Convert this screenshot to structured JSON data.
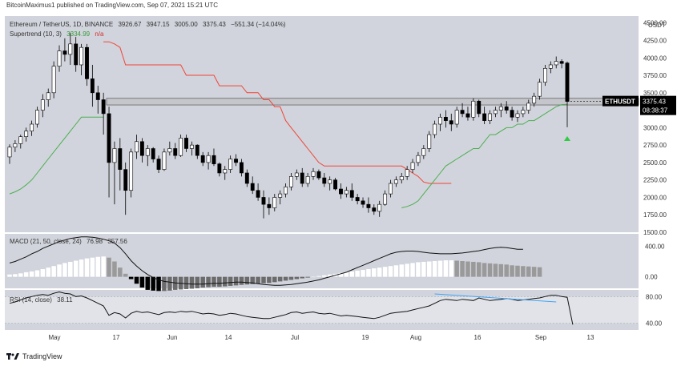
{
  "publish_line": "BitcoinMaximus1 published on TradingView.com, Sep 07, 2021 15:21 UTC",
  "legend": {
    "symbol": "Ethereum / TetherUS, 1D, BINANCE",
    "open": "3926.67",
    "high": "3947.15",
    "low": "3005.00",
    "close": "3375.43",
    "change": "−551.34 (−14.04%)",
    "supertrend_label": "Supertrend (10, 3)",
    "supertrend_value": "3334.99",
    "supertrend_na": "n/a",
    "macd_label": "MACD (21, 50, close, 24)",
    "macd_value1": "76.98",
    "macd_value2": "357.56",
    "rsi_label": "RSI (14, close)",
    "rsi_value": "38.11"
  },
  "price_axis": {
    "unit": "USDT",
    "ticks": [
      "4500.00",
      "4250.00",
      "4000.00",
      "3750.00",
      "3500.00",
      "3250.00",
      "3000.00",
      "2750.00",
      "2500.00",
      "2250.00",
      "2000.00",
      "1750.00",
      "1500.00"
    ]
  },
  "last_price_tag": {
    "symbol": "ETHUSDT",
    "price": "3375.43",
    "countdown": "08:38:37"
  },
  "macd_axis": {
    "ticks": [
      "400.00",
      "0.00"
    ]
  },
  "rsi_axis": {
    "ticks": [
      "80.00",
      "40.00"
    ]
  },
  "date_axis": {
    "ticks": [
      "May",
      "17",
      "Jun",
      "14",
      "Jul",
      "19",
      "Aug",
      "16",
      "Sep",
      "13"
    ]
  },
  "footer": {
    "brand": "TradingView"
  },
  "colors": {
    "background": "#d1d4dc",
    "up": "#ffffff",
    "down": "#000000",
    "supertrend_up": "#4caf50",
    "supertrend_down": "#f44336",
    "rsi_band": "#e1e3e8",
    "rsi_trendline": "#42a5f5"
  },
  "chart_data": [
    {
      "type": "candlestick",
      "title": "Ethereum / TetherUS, 1D, BINANCE",
      "ylabel": "USDT",
      "ylim": [
        1500,
        4600
      ],
      "x_ticks": [
        "May",
        "17",
        "Jun",
        "14",
        "Jul",
        "19",
        "Aug",
        "16",
        "Sep",
        "13"
      ],
      "resistance_zone": [
        3325,
        3420
      ],
      "candles": [
        [
          2580,
          2760,
          2480,
          2720
        ],
        [
          2720,
          2820,
          2650,
          2770
        ],
        [
          2770,
          2900,
          2700,
          2870
        ],
        [
          2870,
          3000,
          2800,
          2950
        ],
        [
          2950,
          3100,
          2880,
          3050
        ],
        [
          3050,
          3300,
          3000,
          3250
        ],
        [
          3250,
          3480,
          3150,
          3400
        ],
        [
          3400,
          3560,
          3300,
          3500
        ],
        [
          3500,
          3950,
          3420,
          3880
        ],
        [
          3880,
          4180,
          3800,
          4100
        ],
        [
          4100,
          4280,
          3950,
          4050
        ],
        [
          4050,
          4360,
          3900,
          4200
        ],
        [
          4200,
          4300,
          3800,
          3900
        ],
        [
          3900,
          4200,
          3750,
          4150
        ],
        [
          4150,
          4200,
          3600,
          3700
        ],
        [
          3700,
          3900,
          3300,
          3500
        ],
        [
          3500,
          3600,
          3200,
          3400
        ],
        [
          3400,
          3500,
          2900,
          3200
        ],
        [
          3200,
          3300,
          2000,
          2500
        ],
        [
          2500,
          2800,
          1900,
          2700
        ],
        [
          2700,
          2850,
          2100,
          2400
        ],
        [
          2400,
          2500,
          1750,
          2100
        ],
        [
          2100,
          2700,
          2000,
          2650
        ],
        [
          2650,
          2900,
          2550,
          2800
        ],
        [
          2800,
          2850,
          2500,
          2600
        ],
        [
          2600,
          2750,
          2450,
          2700
        ],
        [
          2700,
          2720,
          2500,
          2550
        ],
        [
          2550,
          2600,
          2350,
          2400
        ],
        [
          2400,
          2700,
          2380,
          2650
        ],
        [
          2650,
          2800,
          2600,
          2700
        ],
        [
          2700,
          2780,
          2550,
          2600
        ],
        [
          2600,
          2900,
          2580,
          2850
        ],
        [
          2850,
          2900,
          2650,
          2700
        ],
        [
          2700,
          2800,
          2600,
          2750
        ],
        [
          2750,
          2760,
          2550,
          2600
        ],
        [
          2600,
          2650,
          2450,
          2500
        ],
        [
          2500,
          2650,
          2400,
          2600
        ],
        [
          2600,
          2700,
          2450,
          2480
        ],
        [
          2480,
          2500,
          2300,
          2350
        ],
        [
          2350,
          2450,
          2250,
          2400
        ],
        [
          2400,
          2600,
          2350,
          2550
        ],
        [
          2550,
          2620,
          2450,
          2500
        ],
        [
          2500,
          2550,
          2300,
          2350
        ],
        [
          2350,
          2400,
          2150,
          2200
        ],
        [
          2200,
          2300,
          2050,
          2100
        ],
        [
          2100,
          2200,
          1950,
          2000
        ],
        [
          2000,
          2100,
          1700,
          1900
        ],
        [
          1900,
          2000,
          1750,
          1850
        ],
        [
          1850,
          2050,
          1800,
          2000
        ],
        [
          2000,
          2100,
          1900,
          2050
        ],
        [
          2050,
          2200,
          2000,
          2150
        ],
        [
          2150,
          2350,
          2100,
          2300
        ],
        [
          2300,
          2400,
          2250,
          2350
        ],
        [
          2350,
          2420,
          2150,
          2200
        ],
        [
          2200,
          2350,
          2150,
          2300
        ],
        [
          2300,
          2420,
          2250,
          2370
        ],
        [
          2370,
          2400,
          2250,
          2280
        ],
        [
          2280,
          2350,
          2150,
          2200
        ],
        [
          2200,
          2300,
          2100,
          2250
        ],
        [
          2250,
          2280,
          2100,
          2120
        ],
        [
          2120,
          2200,
          1980,
          2050
        ],
        [
          2050,
          2150,
          2000,
          2100
        ],
        [
          2100,
          2200,
          1950,
          2000
        ],
        [
          2000,
          2050,
          1900,
          1950
        ],
        [
          1950,
          2000,
          1850,
          1900
        ],
        [
          1900,
          2000,
          1780,
          1850
        ],
        [
          1850,
          1900,
          1750,
          1800
        ],
        [
          1800,
          1950,
          1720,
          1900
        ],
        [
          1900,
          2100,
          1880,
          2050
        ],
        [
          2050,
          2250,
          2000,
          2200
        ],
        [
          2200,
          2300,
          2150,
          2250
        ],
        [
          2250,
          2350,
          2200,
          2300
        ],
        [
          2300,
          2450,
          2250,
          2400
        ],
        [
          2400,
          2550,
          2350,
          2500
        ],
        [
          2500,
          2650,
          2450,
          2600
        ],
        [
          2600,
          2750,
          2550,
          2700
        ],
        [
          2700,
          2950,
          2650,
          2900
        ],
        [
          2900,
          3100,
          2850,
          3050
        ],
        [
          3050,
          3200,
          2950,
          3150
        ],
        [
          3150,
          3250,
          3000,
          3100
        ],
        [
          3100,
          3200,
          2950,
          3050
        ],
        [
          3050,
          3300,
          3000,
          3250
        ],
        [
          3250,
          3350,
          3150,
          3200
        ],
        [
          3200,
          3300,
          3100,
          3150
        ],
        [
          3150,
          3420,
          3100,
          3380
        ],
        [
          3380,
          3400,
          3150,
          3200
        ],
        [
          3200,
          3300,
          3050,
          3100
        ],
        [
          3100,
          3250,
          3050,
          3200
        ],
        [
          3200,
          3300,
          3150,
          3250
        ],
        [
          3250,
          3350,
          3150,
          3300
        ],
        [
          3300,
          3380,
          3200,
          3250
        ],
        [
          3250,
          3300,
          3100,
          3150
        ],
        [
          3150,
          3250,
          3080,
          3200
        ],
        [
          3200,
          3300,
          3150,
          3250
        ],
        [
          3250,
          3400,
          3200,
          3350
        ],
        [
          3350,
          3500,
          3300,
          3450
        ],
        [
          3450,
          3700,
          3400,
          3650
        ],
        [
          3650,
          3900,
          3600,
          3850
        ],
        [
          3850,
          3950,
          3780,
          3900
        ],
        [
          3900,
          4020,
          3850,
          3950
        ],
        [
          3950,
          3980,
          3850,
          3920
        ],
        [
          3926.67,
          3947.15,
          3005,
          3375.43
        ]
      ],
      "supertrend_up_start": [
        2050,
        2080,
        2120,
        2180,
        2250,
        2350,
        2450,
        2550,
        2650,
        2750,
        2850,
        2950,
        3050,
        3150,
        3150,
        3150,
        3150,
        3150
      ],
      "supertrend_down_mid": [
        4230,
        4230,
        4200,
        4150,
        3900,
        3900,
        3900,
        3900,
        3900,
        3900,
        3900,
        3900,
        3900,
        3900,
        3900,
        3750,
        3750,
        3750,
        3750,
        3750,
        3750,
        3600,
        3600,
        3600,
        3600,
        3600,
        3500,
        3500,
        3500,
        3400,
        3400,
        3300,
        3300,
        3100,
        3000,
        2900,
        2800,
        2700,
        2600,
        2500,
        2450,
        2450,
        2450,
        2450,
        2450,
        2450,
        2450,
        2450,
        2450,
        2450,
        2450,
        2450,
        2450,
        2450,
        2450,
        2400,
        2350,
        2300,
        2220,
        2200,
        2200,
        2200,
        2200,
        2200
      ],
      "supertrend_up_end": [
        1850,
        1870,
        1900,
        1950,
        2050,
        2150,
        2250,
        2350,
        2450,
        2500,
        2550,
        2600,
        2650,
        2700,
        2700,
        2800,
        2900,
        2900,
        2950,
        3000,
        3000,
        3050,
        3050,
        3100,
        3100,
        3150,
        3200,
        3250,
        3300,
        3330,
        3335
      ]
    },
    {
      "type": "bar",
      "title": "MACD (21, 50, close, 24)",
      "ylim": [
        -150,
        560
      ],
      "histogram": [
        30,
        35,
        45,
        60,
        70,
        85,
        100,
        120,
        140,
        160,
        180,
        195,
        210,
        225,
        240,
        250,
        260,
        265,
        250,
        200,
        120,
        40,
        -30,
        -90,
        -140,
        -170,
        -180,
        -185,
        -185,
        -180,
        -170,
        -165,
        -160,
        -155,
        -150,
        -140,
        -135,
        -130,
        -130,
        -125,
        -118,
        -112,
        -105,
        -100,
        -95,
        -90,
        -85,
        -80,
        -70,
        -60,
        -50,
        -40,
        -30,
        -20,
        -10,
        0,
        10,
        20,
        30,
        40,
        50,
        60,
        70,
        80,
        90,
        100,
        110,
        120,
        130,
        140,
        150,
        160,
        170,
        180,
        190,
        195,
        200,
        205,
        210,
        215,
        215,
        210,
        205,
        200,
        195,
        190,
        180,
        175,
        170,
        165,
        160,
        150,
        145,
        140,
        135,
        130,
        125
      ],
      "macd_line": [
        180,
        200,
        230,
        260,
        300,
        330,
        370,
        400,
        430,
        460,
        480,
        500,
        510,
        520,
        520,
        515,
        505,
        490,
        470,
        440,
        380,
        300,
        210,
        140,
        80,
        30,
        -10,
        -40,
        -60,
        -70,
        -80,
        -85,
        -90,
        -95,
        -95,
        -95,
        -90,
        -85,
        -85,
        -80,
        -75,
        -70,
        -70,
        -75,
        -80,
        -90,
        -100,
        -105,
        -110,
        -110,
        -105,
        -100,
        -90,
        -80,
        -70,
        -55,
        -40,
        -20,
        0,
        20,
        40,
        60,
        90,
        120,
        150,
        180,
        210,
        240,
        270,
        300,
        320,
        330,
        335,
        335,
        330,
        320,
        310,
        305,
        300,
        300,
        300,
        305,
        310,
        320,
        330,
        340,
        355,
        370,
        380,
        385,
        380,
        370,
        360,
        358
      ]
    },
    {
      "type": "line",
      "title": "RSI (14, close)",
      "ylim": [
        30,
        90
      ],
      "band": [
        40,
        80
      ],
      "values": [
        70,
        72,
        75,
        78,
        80,
        82,
        83,
        82,
        85,
        87,
        85,
        84,
        80,
        81,
        78,
        74,
        70,
        66,
        52,
        56,
        54,
        48,
        55,
        58,
        56,
        57,
        55,
        53,
        56,
        57,
        56,
        58,
        57,
        58,
        56,
        54,
        55,
        54,
        52,
        53,
        55,
        54,
        52,
        50,
        49,
        48,
        47,
        47,
        49,
        51,
        53,
        56,
        57,
        55,
        56,
        57,
        55,
        54,
        55,
        53,
        51,
        52,
        51,
        50,
        49,
        48,
        47,
        49,
        52,
        55,
        56,
        57,
        58,
        60,
        62,
        64,
        66,
        70,
        74,
        76,
        75,
        74,
        76,
        75,
        74,
        78,
        76,
        74,
        75,
        76,
        77,
        76,
        74,
        75,
        76,
        77,
        78,
        80,
        82,
        82,
        80,
        79,
        38
      ]
    }
  ]
}
